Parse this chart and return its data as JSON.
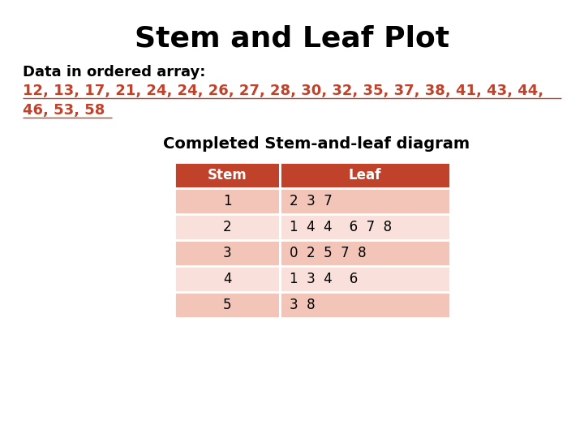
{
  "title": "Stem and Leaf Plot",
  "subtitle": "Data in ordered array:",
  "data_line1": "12, 13, 17, 21, 24, 24, 26, 27, 28, 30, 32, 35, 37, 38, 41, 43, 44,",
  "data_line2": "46, 53, 58",
  "table_title": "Completed Stem-and-leaf diagram",
  "stems": [
    "1",
    "2",
    "3",
    "4",
    "5"
  ],
  "leaves": [
    "2  3  7",
    "1  4  4    6  7  8",
    "0  2  5  7  8",
    "1  3  4    6",
    "3  8"
  ],
  "header_bg": "#c0422a",
  "row_bg_odd": "#f2c5b8",
  "row_bg_even": "#fae0da",
  "header_text_color": "#ffffff",
  "data_color": "#c0422a",
  "title_color": "#000000",
  "subtitle_color": "#000000",
  "bg_color": "#ffffff",
  "title_fontsize": 26,
  "subtitle_fontsize": 13,
  "data_fontsize": 13,
  "table_title_fontsize": 14,
  "table_fontsize": 12
}
